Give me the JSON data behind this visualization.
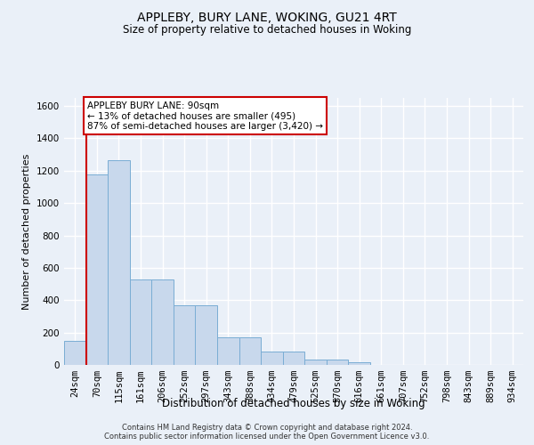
{
  "title1": "APPLEBY, BURY LANE, WOKING, GU21 4RT",
  "title2": "Size of property relative to detached houses in Woking",
  "xlabel": "Distribution of detached houses by size in Woking",
  "ylabel": "Number of detached properties",
  "bar_values": [
    150,
    1175,
    1265,
    530,
    530,
    370,
    370,
    170,
    170,
    85,
    85,
    35,
    35,
    15,
    0,
    0,
    0,
    0,
    0,
    0,
    0
  ],
  "bin_labels": [
    "24sqm",
    "70sqm",
    "115sqm",
    "161sqm",
    "206sqm",
    "252sqm",
    "297sqm",
    "343sqm",
    "388sqm",
    "434sqm",
    "479sqm",
    "525sqm",
    "570sqm",
    "616sqm",
    "661sqm",
    "707sqm",
    "752sqm",
    "798sqm",
    "843sqm",
    "889sqm",
    "934sqm"
  ],
  "bar_color": "#c8d8ec",
  "bar_edge_color": "#7aadd4",
  "red_line_x": 1,
  "annotation_text": "APPLEBY BURY LANE: 90sqm\n← 13% of detached houses are smaller (495)\n87% of semi-detached houses are larger (3,420) →",
  "annotation_box_color": "#ffffff",
  "annotation_border_color": "#cc0000",
  "footer_text": "Contains HM Land Registry data © Crown copyright and database right 2024.\nContains public sector information licensed under the Open Government Licence v3.0.",
  "background_color": "#eaf0f8",
  "ylim": [
    0,
    1650
  ],
  "yticks": [
    0,
    200,
    400,
    600,
    800,
    1000,
    1200,
    1400,
    1600
  ],
  "grid_color": "#ffffff"
}
